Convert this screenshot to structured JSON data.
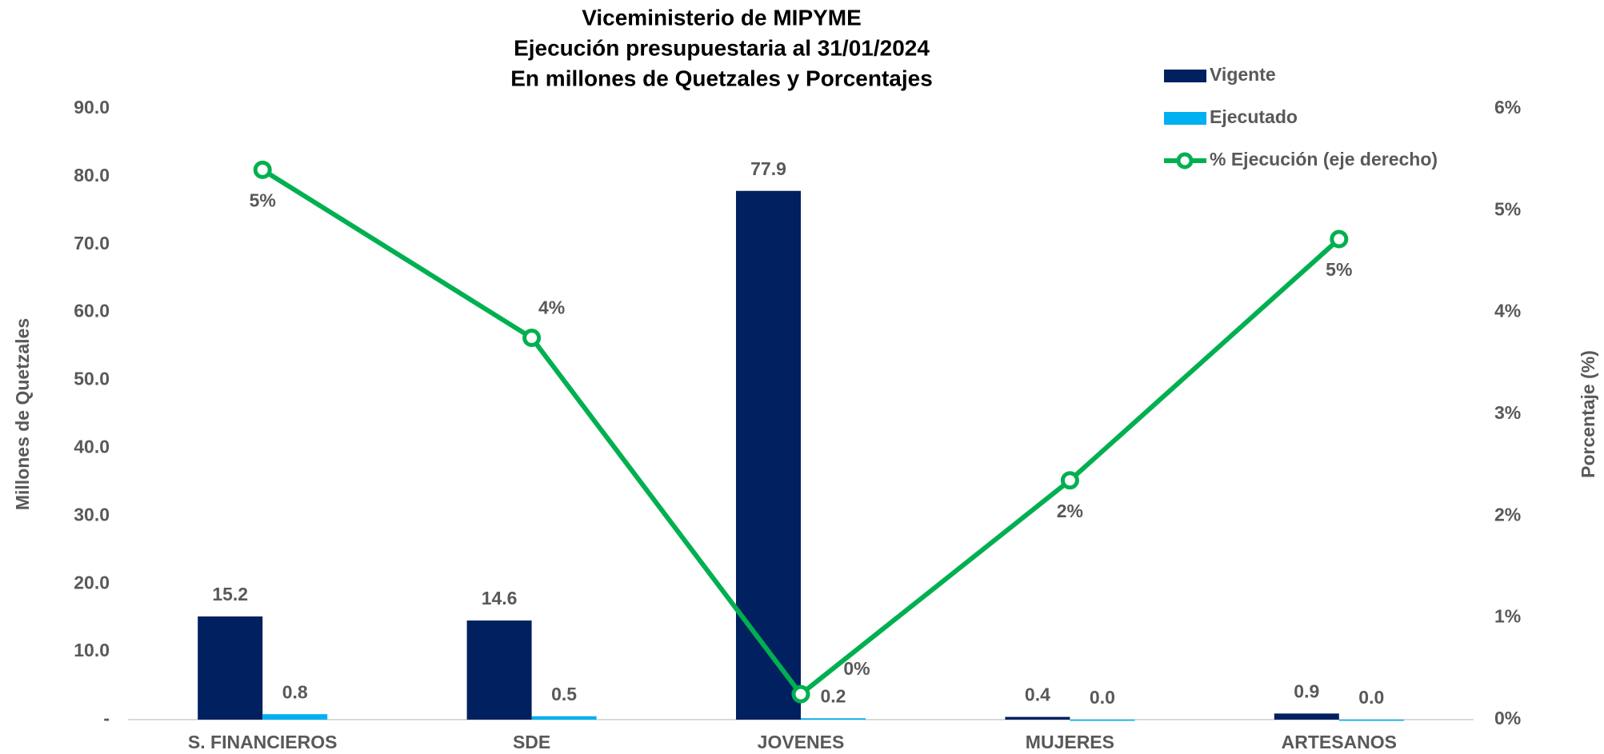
{
  "chart_data": {
    "type": "bar-line",
    "title": [
      "Viceministerio de MIPYME",
      "Ejecución presupuestaria al 31/01/2024",
      "En millones de Quetzales y Porcentajes"
    ],
    "y_label": "Millones de Quetzales",
    "y2_label": "Porcentaje (%)",
    "categories": [
      "S. FINANCIEROS",
      "SDE",
      "JOVENES",
      "MUJERES",
      "ARTESANOS"
    ],
    "series": [
      {
        "name": "Vigente",
        "type": "bar",
        "color": "#002060",
        "values": [
          15.2,
          14.6,
          77.9,
          0.4,
          0.9
        ],
        "value_labels": [
          "15.2",
          "14.6",
          "77.9",
          "0.4",
          "0.9"
        ]
      },
      {
        "name": "Ejecutado",
        "type": "bar",
        "color": "#00b0f0",
        "values": [
          0.8,
          0.5,
          0.2,
          0.0,
          0.0
        ],
        "value_labels": [
          "0.8",
          "0.5",
          "0.2",
          "0.0",
          "0.0"
        ]
      },
      {
        "name": "% Ejecución (eje derecho)",
        "type": "line",
        "axis": "y2",
        "color": "#00b050",
        "values": [
          5.4,
          3.75,
          0.25,
          2.35,
          4.72
        ],
        "value_labels": [
          "5%",
          "4%",
          "0%",
          "2%",
          "5%"
        ]
      }
    ],
    "ylim": [
      0,
      90
    ],
    "yticks": [
      {
        "value": 0,
        "label": "-"
      },
      {
        "value": 10,
        "label": "10.0"
      },
      {
        "value": 20,
        "label": "20.0"
      },
      {
        "value": 30,
        "label": "30.0"
      },
      {
        "value": 40,
        "label": "40.0"
      },
      {
        "value": 50,
        "label": "50.0"
      },
      {
        "value": 60,
        "label": "60.0"
      },
      {
        "value": 70,
        "label": "70.0"
      },
      {
        "value": 80,
        "label": "80.0"
      },
      {
        "value": 90,
        "label": "90.0"
      }
    ],
    "y2lim": [
      0,
      6
    ],
    "y2ticks": [
      {
        "value": 0,
        "label": "0%"
      },
      {
        "value": 1,
        "label": "1%"
      },
      {
        "value": 2,
        "label": "2%"
      },
      {
        "value": 3,
        "label": "3%"
      },
      {
        "value": 4,
        "label": "4%"
      },
      {
        "value": 5,
        "label": "5%"
      },
      {
        "value": 6,
        "label": "6%"
      }
    ],
    "legend": "top-right"
  }
}
